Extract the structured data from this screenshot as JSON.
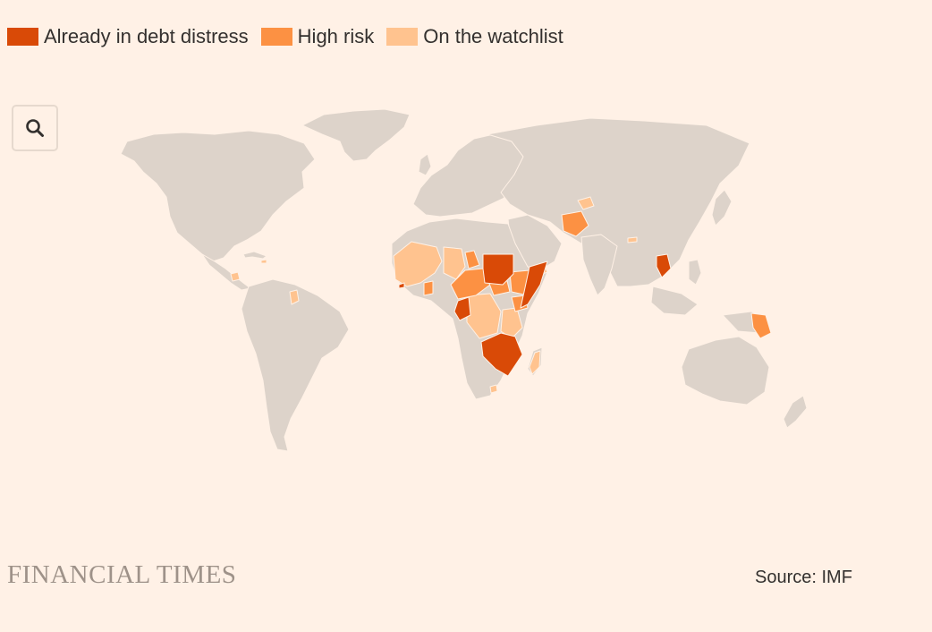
{
  "legend": {
    "items": [
      {
        "label": "Already in debt distress",
        "color": "#D94A07"
      },
      {
        "label": "High risk",
        "color": "#FC9143"
      },
      {
        "label": "On the watchlist",
        "color": "#FFC38F"
      }
    ]
  },
  "toolbar": {
    "search_icon": "search-icon"
  },
  "map": {
    "land_color": "#DDD3CA",
    "border_color": "#FFF1E6"
  },
  "footer": {
    "brand": "FINANCIAL TIMES",
    "source": "Source: IMF"
  }
}
